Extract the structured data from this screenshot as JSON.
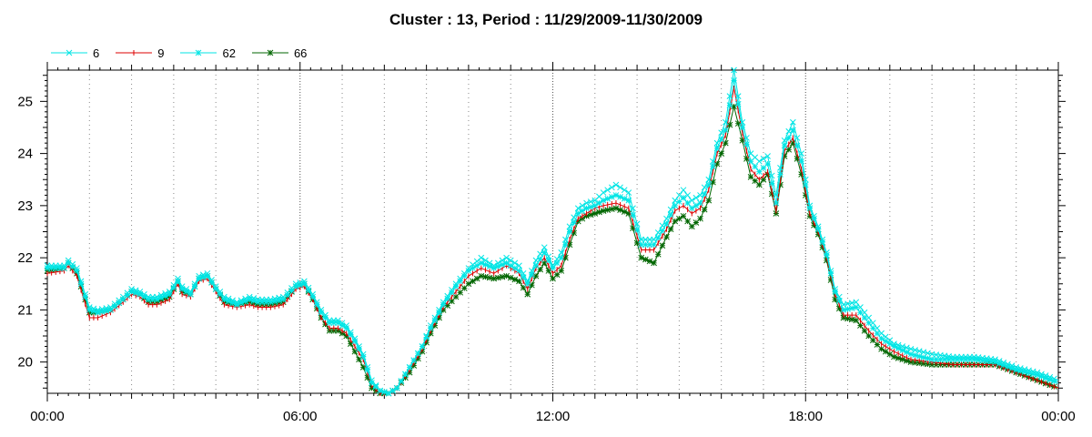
{
  "chart_data": {
    "type": "line",
    "title": "Cluster : 13, Period : 11/29/2009-11/30/2009",
    "xlabel": "",
    "ylabel": "",
    "x_tick_labels": [
      "00:00",
      "06:00",
      "12:00",
      "18:00",
      "00:00"
    ],
    "x_tick_hours": [
      0,
      6,
      12,
      18,
      24
    ],
    "xlim": [
      0,
      24
    ],
    "ylim": [
      19.4,
      25.6
    ],
    "y_ticks": [
      20,
      21,
      22,
      23,
      24,
      25
    ],
    "grid": true,
    "legend_position": "top-left",
    "series": [
      {
        "name": "6",
        "color": "#00e5e5",
        "marker": "x",
        "hours": [
          0,
          0.4,
          0.5,
          0.7,
          1.0,
          1.2,
          1.5,
          1.8,
          2.0,
          2.2,
          2.4,
          2.6,
          2.9,
          3.1,
          3.2,
          3.4,
          3.6,
          3.8,
          4.0,
          4.2,
          4.5,
          4.8,
          5.0,
          5.3,
          5.6,
          5.9,
          6.1,
          6.3,
          6.5,
          6.7,
          6.9,
          7.1,
          7.3,
          7.5,
          7.7,
          7.9,
          8.1,
          8.3,
          8.6,
          8.9,
          9.1,
          9.4,
          9.7,
          10.0,
          10.3,
          10.6,
          10.9,
          11.2,
          11.4,
          11.6,
          11.8,
          12.0,
          12.2,
          12.4,
          12.6,
          12.8,
          13.0,
          13.2,
          13.5,
          13.8,
          14.1,
          14.4,
          14.7,
          14.9,
          15.1,
          15.3,
          15.5,
          15.7,
          15.9,
          16.1,
          16.3,
          16.5,
          16.7,
          16.9,
          17.1,
          17.3,
          17.5,
          17.7,
          17.9,
          18.1,
          18.3,
          18.5,
          18.7,
          18.9,
          19.2,
          19.5,
          19.8,
          20.1,
          20.5,
          21.0,
          21.5,
          22.0,
          22.5,
          23.0,
          23.5,
          24.0
        ],
        "values": [
          21.85,
          21.85,
          21.95,
          21.8,
          21.05,
          21.0,
          21.05,
          21.25,
          21.4,
          21.35,
          21.25,
          21.25,
          21.35,
          21.6,
          21.45,
          21.35,
          21.65,
          21.7,
          21.45,
          21.25,
          21.15,
          21.25,
          21.2,
          21.2,
          21.25,
          21.5,
          21.55,
          21.3,
          21.0,
          20.8,
          20.8,
          20.7,
          20.45,
          20.15,
          19.65,
          19.45,
          19.4,
          19.5,
          19.9,
          20.3,
          20.7,
          21.15,
          21.5,
          21.8,
          22.0,
          21.85,
          22.0,
          21.85,
          21.55,
          21.95,
          22.2,
          21.85,
          22.1,
          22.6,
          22.95,
          23.05,
          23.1,
          23.25,
          23.4,
          23.25,
          22.35,
          22.35,
          22.75,
          23.1,
          23.3,
          23.1,
          23.2,
          23.5,
          24.2,
          24.6,
          25.6,
          24.6,
          24.0,
          23.85,
          23.95,
          23.2,
          24.25,
          24.6,
          24.0,
          23.0,
          22.6,
          22.1,
          21.4,
          21.1,
          21.15,
          20.85,
          20.55,
          20.35,
          20.25,
          20.15,
          20.1,
          20.1,
          20.05,
          19.9,
          19.8,
          19.65
        ]
      },
      {
        "name": "9",
        "color": "#dd0000",
        "marker": "+",
        "hours": [
          0,
          0.4,
          0.5,
          0.7,
          1.0,
          1.2,
          1.5,
          1.8,
          2.0,
          2.2,
          2.4,
          2.6,
          2.9,
          3.1,
          3.2,
          3.4,
          3.6,
          3.8,
          4.0,
          4.2,
          4.5,
          4.8,
          5.0,
          5.3,
          5.6,
          5.9,
          6.1,
          6.3,
          6.5,
          6.7,
          6.9,
          7.1,
          7.3,
          7.5,
          7.7,
          7.9,
          8.1,
          8.3,
          8.6,
          8.9,
          9.1,
          9.4,
          9.7,
          10.0,
          10.3,
          10.6,
          10.9,
          11.2,
          11.4,
          11.6,
          11.8,
          12.0,
          12.2,
          12.4,
          12.6,
          12.8,
          13.0,
          13.2,
          13.5,
          13.8,
          14.1,
          14.4,
          14.7,
          14.9,
          15.1,
          15.3,
          15.5,
          15.7,
          15.9,
          16.1,
          16.3,
          16.5,
          16.7,
          16.9,
          17.1,
          17.3,
          17.5,
          17.7,
          17.9,
          18.1,
          18.3,
          18.5,
          18.7,
          18.9,
          19.2,
          19.5,
          19.8,
          20.1,
          20.5,
          21.0,
          21.5,
          22.0,
          22.5,
          23.0,
          23.5,
          24.0
        ],
        "values": [
          21.7,
          21.75,
          21.85,
          21.65,
          20.85,
          20.85,
          20.95,
          21.15,
          21.3,
          21.25,
          21.1,
          21.1,
          21.2,
          21.5,
          21.3,
          21.25,
          21.55,
          21.6,
          21.35,
          21.1,
          21.05,
          21.1,
          21.05,
          21.05,
          21.1,
          21.4,
          21.45,
          21.2,
          20.85,
          20.65,
          20.65,
          20.55,
          20.3,
          20.05,
          19.55,
          19.4,
          19.4,
          19.5,
          19.85,
          20.25,
          20.6,
          21.05,
          21.35,
          21.65,
          21.8,
          21.7,
          21.85,
          21.7,
          21.4,
          21.8,
          22.0,
          21.7,
          21.85,
          22.35,
          22.75,
          22.85,
          22.95,
          23.0,
          23.05,
          22.95,
          22.15,
          22.15,
          22.55,
          22.9,
          23.0,
          22.85,
          22.95,
          23.3,
          24.0,
          24.35,
          25.25,
          24.4,
          23.7,
          23.5,
          23.65,
          22.9,
          24.05,
          24.3,
          23.7,
          22.85,
          22.5,
          22.0,
          21.3,
          20.9,
          20.9,
          20.6,
          20.35,
          20.2,
          20.05,
          20.0,
          19.95,
          19.95,
          19.95,
          19.8,
          19.65,
          19.5
        ]
      },
      {
        "name": "62",
        "color": "#00e5e5",
        "marker": "star",
        "hours": [
          0,
          0.4,
          0.5,
          0.7,
          1.0,
          1.2,
          1.5,
          1.8,
          2.0,
          2.2,
          2.4,
          2.6,
          2.9,
          3.1,
          3.2,
          3.4,
          3.6,
          3.8,
          4.0,
          4.2,
          4.5,
          4.8,
          5.0,
          5.3,
          5.6,
          5.9,
          6.1,
          6.3,
          6.5,
          6.7,
          6.9,
          7.1,
          7.3,
          7.5,
          7.7,
          7.9,
          8.1,
          8.3,
          8.6,
          8.9,
          9.1,
          9.4,
          9.7,
          10.0,
          10.3,
          10.6,
          10.9,
          11.2,
          11.4,
          11.6,
          11.8,
          12.0,
          12.2,
          12.4,
          12.6,
          12.8,
          13.0,
          13.2,
          13.5,
          13.8,
          14.1,
          14.4,
          14.7,
          14.9,
          15.1,
          15.3,
          15.5,
          15.7,
          15.9,
          16.1,
          16.3,
          16.5,
          16.7,
          16.9,
          17.1,
          17.3,
          17.5,
          17.7,
          17.9,
          18.1,
          18.3,
          18.5,
          18.7,
          18.9,
          19.2,
          19.5,
          19.8,
          20.1,
          20.5,
          21.0,
          21.5,
          22.0,
          22.5,
          23.0,
          23.5,
          24.0
        ],
        "values": [
          21.8,
          21.8,
          21.9,
          21.75,
          21.0,
          20.95,
          21.0,
          21.2,
          21.35,
          21.3,
          21.2,
          21.2,
          21.3,
          21.55,
          21.4,
          21.3,
          21.6,
          21.65,
          21.4,
          21.2,
          21.1,
          21.2,
          21.15,
          21.15,
          21.2,
          21.45,
          21.5,
          21.25,
          20.95,
          20.75,
          20.75,
          20.65,
          20.4,
          20.1,
          19.6,
          19.45,
          19.4,
          19.5,
          19.9,
          20.3,
          20.65,
          21.1,
          21.45,
          21.75,
          21.9,
          21.8,
          21.9,
          21.75,
          21.5,
          21.85,
          22.1,
          21.8,
          22.0,
          22.5,
          22.85,
          22.95,
          23.0,
          23.1,
          23.2,
          23.1,
          22.25,
          22.25,
          22.65,
          23.0,
          23.15,
          22.95,
          23.05,
          23.4,
          24.1,
          24.45,
          25.4,
          24.5,
          23.85,
          23.65,
          23.8,
          23.05,
          24.15,
          24.45,
          23.85,
          22.95,
          22.55,
          22.05,
          21.35,
          21.0,
          21.05,
          20.75,
          20.45,
          20.3,
          20.15,
          20.05,
          20.05,
          20.05,
          20.0,
          19.85,
          19.75,
          19.6
        ]
      },
      {
        "name": "66",
        "color": "#006600",
        "marker": "asterisk",
        "hours": [
          0,
          0.4,
          0.5,
          0.7,
          1.0,
          1.2,
          1.5,
          1.8,
          2.0,
          2.2,
          2.4,
          2.6,
          2.9,
          3.1,
          3.2,
          3.4,
          3.6,
          3.8,
          4.0,
          4.2,
          4.5,
          4.8,
          5.0,
          5.3,
          5.6,
          5.9,
          6.1,
          6.3,
          6.5,
          6.7,
          6.9,
          7.1,
          7.3,
          7.5,
          7.7,
          7.9,
          8.1,
          8.3,
          8.6,
          8.9,
          9.1,
          9.4,
          9.7,
          10.0,
          10.3,
          10.6,
          10.9,
          11.2,
          11.4,
          11.6,
          11.8,
          12.0,
          12.2,
          12.4,
          12.6,
          12.8,
          13.0,
          13.2,
          13.5,
          13.8,
          14.1,
          14.4,
          14.7,
          14.9,
          15.1,
          15.3,
          15.5,
          15.7,
          15.9,
          16.1,
          16.3,
          16.5,
          16.7,
          16.9,
          17.1,
          17.3,
          17.5,
          17.7,
          17.9,
          18.1,
          18.3,
          18.5,
          18.7,
          18.9,
          19.2,
          19.5,
          19.8,
          20.1,
          20.5,
          21.0,
          21.5,
          22.0,
          22.5,
          23.0,
          23.5,
          24.0
        ],
        "values": [
          21.75,
          21.8,
          21.9,
          21.7,
          20.95,
          20.95,
          21.0,
          21.2,
          21.35,
          21.3,
          21.15,
          21.15,
          21.25,
          21.55,
          21.35,
          21.3,
          21.6,
          21.65,
          21.4,
          21.15,
          21.1,
          21.15,
          21.1,
          21.1,
          21.15,
          21.45,
          21.5,
          21.2,
          20.85,
          20.6,
          20.6,
          20.5,
          20.2,
          19.9,
          19.5,
          19.4,
          19.4,
          19.5,
          19.8,
          20.2,
          20.55,
          21.0,
          21.25,
          21.5,
          21.65,
          21.6,
          21.65,
          21.55,
          21.3,
          21.65,
          21.9,
          21.6,
          21.75,
          22.25,
          22.7,
          22.8,
          22.85,
          22.9,
          22.95,
          22.85,
          22.0,
          21.9,
          22.4,
          22.7,
          22.8,
          22.6,
          22.75,
          23.1,
          23.8,
          24.2,
          24.9,
          24.25,
          23.55,
          23.4,
          23.6,
          22.85,
          23.95,
          24.2,
          23.6,
          22.8,
          22.45,
          21.95,
          21.2,
          20.85,
          20.8,
          20.5,
          20.25,
          20.1,
          20.0,
          19.95,
          19.95,
          19.95,
          19.95,
          19.8,
          19.65,
          19.5
        ]
      }
    ]
  }
}
